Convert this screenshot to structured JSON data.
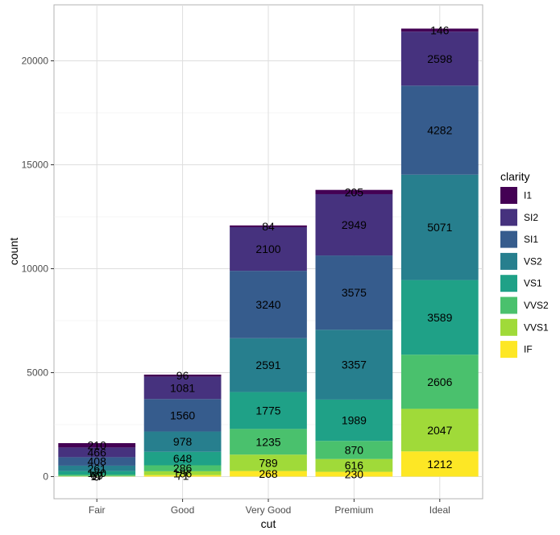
{
  "chart_data": {
    "type": "bar",
    "stacked": true,
    "xlabel": "cut",
    "ylabel": "count",
    "categories": [
      "Fair",
      "Good",
      "Very Good",
      "Premium",
      "Ideal"
    ],
    "ylim": [
      0,
      22000
    ],
    "yticks": [
      0,
      5000,
      10000,
      15000,
      20000
    ],
    "grid": true,
    "legend_title": "clarity",
    "legend_position": "right",
    "series": [
      {
        "name": "IF",
        "color": "#FDE725",
        "values": [
          9,
          71,
          268,
          230,
          1212
        ]
      },
      {
        "name": "VVS1",
        "color": "#A0DA39",
        "values": [
          17,
          186,
          789,
          616,
          2047
        ]
      },
      {
        "name": "VVS2",
        "color": "#4AC16D",
        "values": [
          69,
          286,
          1235,
          870,
          2606
        ]
      },
      {
        "name": "VS1",
        "color": "#1FA187",
        "values": [
          170,
          648,
          1775,
          1989,
          3589
        ]
      },
      {
        "name": "VS2",
        "color": "#277F8E",
        "values": [
          261,
          978,
          2591,
          3357,
          5071
        ]
      },
      {
        "name": "SI1",
        "color": "#365C8D",
        "values": [
          408,
          1560,
          3240,
          3575,
          4282
        ]
      },
      {
        "name": "SI2",
        "color": "#46327E",
        "values": [
          466,
          1081,
          2100,
          2949,
          2598
        ]
      },
      {
        "name": "I1",
        "color": "#440154",
        "values": [
          210,
          96,
          84,
          205,
          146
        ]
      }
    ]
  }
}
